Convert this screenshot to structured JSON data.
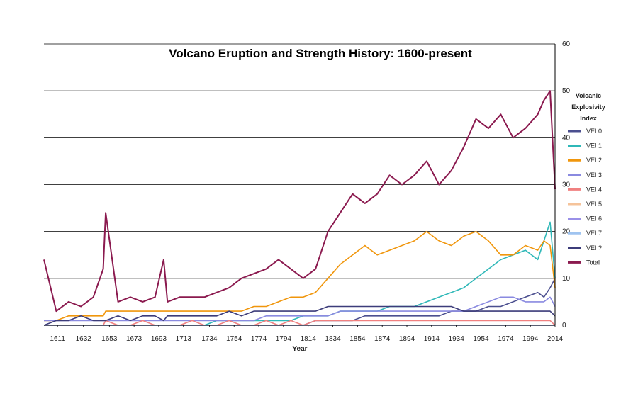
{
  "chart_data": {
    "type": "line",
    "title": "Volcano Eruption and Strength History: 1600-present",
    "xlabel": "Year",
    "ylabel": "",
    "ylim": [
      0,
      60
    ],
    "xlim": [
      1600,
      2014
    ],
    "y_ticks": [
      "0",
      "10",
      "20",
      "30",
      "40",
      "50",
      "60"
    ],
    "x_ticks": [
      "1611",
      "1632",
      "1653",
      "1673",
      "1693",
      "1713",
      "1734",
      "1754",
      "1774",
      "1794",
      "1814",
      "1834",
      "1854",
      "1874",
      "1894",
      "1914",
      "1934",
      "1954",
      "1974",
      "1994",
      "2014"
    ],
    "grid": true,
    "y_axis_position": "right",
    "legend": {
      "title_lines": [
        "Volcanic",
        "Explosivity",
        "Index"
      ],
      "placement": "right"
    },
    "x": [
      1600,
      1610,
      1620,
      1630,
      1640,
      1648,
      1650,
      1660,
      1670,
      1680,
      1690,
      1697,
      1700,
      1710,
      1720,
      1730,
      1740,
      1750,
      1760,
      1770,
      1780,
      1790,
      1800,
      1810,
      1820,
      1830,
      1840,
      1850,
      1860,
      1870,
      1880,
      1890,
      1900,
      1910,
      1920,
      1930,
      1940,
      1950,
      1960,
      1970,
      1980,
      1990,
      2000,
      2005,
      2010,
      2014
    ],
    "series": [
      {
        "name": "VEI 0",
        "color": "#4b4f8f",
        "values": [
          0,
          0,
          0,
          0,
          0,
          0,
          0,
          0,
          0,
          0,
          0,
          0,
          0,
          0,
          0,
          0,
          0,
          0,
          0,
          0,
          0,
          0,
          0,
          0,
          1,
          1,
          1,
          1,
          2,
          2,
          2,
          2,
          2,
          2,
          2,
          3,
          3,
          3,
          4,
          4,
          5,
          6,
          7,
          6,
          8,
          10
        ]
      },
      {
        "name": "VEI 1",
        "color": "#2fb8b8",
        "values": [
          0,
          0,
          0,
          0,
          0,
          0,
          0,
          0,
          0,
          0,
          0,
          0,
          0,
          0,
          0,
          0,
          1,
          1,
          1,
          1,
          1,
          1,
          1,
          2,
          2,
          2,
          3,
          3,
          3,
          3,
          4,
          4,
          4,
          5,
          6,
          7,
          8,
          10,
          12,
          14,
          15,
          16,
          14,
          18,
          22,
          10
        ]
      },
      {
        "name": "VEI 2",
        "color": "#f0960c",
        "values": [
          1,
          1,
          2,
          2,
          2,
          2,
          3,
          3,
          3,
          3,
          3,
          3,
          3,
          3,
          3,
          3,
          3,
          3,
          3,
          4,
          4,
          5,
          6,
          6,
          7,
          10,
          13,
          15,
          17,
          15,
          16,
          17,
          18,
          20,
          18,
          17,
          19,
          20,
          18,
          15,
          15,
          17,
          16,
          18,
          17,
          8
        ]
      },
      {
        "name": "VEI 3",
        "color": "#8a8ae0",
        "values": [
          1,
          1,
          1,
          1,
          1,
          1,
          1,
          1,
          1,
          1,
          1,
          1,
          1,
          1,
          1,
          1,
          1,
          1,
          1,
          1,
          2,
          2,
          2,
          2,
          2,
          2,
          3,
          3,
          3,
          3,
          3,
          3,
          3,
          3,
          3,
          3,
          3,
          4,
          5,
          6,
          6,
          5,
          5,
          5,
          6,
          4
        ]
      },
      {
        "name": "VEI 4",
        "color": "#f08080",
        "values": [
          0,
          0,
          0,
          0,
          0,
          0,
          1,
          0,
          0,
          1,
          0,
          0,
          0,
          0,
          1,
          0,
          0,
          1,
          0,
          0,
          1,
          0,
          1,
          0,
          1,
          1,
          1,
          1,
          1,
          1,
          1,
          1,
          1,
          1,
          1,
          1,
          1,
          1,
          1,
          1,
          1,
          1,
          1,
          1,
          1,
          0
        ]
      },
      {
        "name": "VEI 5",
        "color": "#f5c39a",
        "values": [
          0,
          0,
          0,
          0,
          0,
          0,
          0,
          0,
          0,
          0,
          0,
          0,
          0,
          0,
          0,
          0,
          0,
          0,
          0,
          0,
          0,
          0,
          0,
          0,
          0,
          0,
          0,
          0,
          0,
          0,
          0,
          0,
          0,
          0,
          0,
          0,
          0,
          0,
          0,
          0,
          0,
          0,
          0,
          0,
          0,
          0
        ]
      },
      {
        "name": "VEI 6",
        "color": "#9a90e8",
        "values": [
          0,
          0,
          0,
          0,
          0,
          0,
          0,
          0,
          0,
          0,
          0,
          0,
          0,
          0,
          0,
          0,
          0,
          0,
          0,
          0,
          0,
          0,
          0,
          0,
          0,
          0,
          0,
          0,
          0,
          0,
          0,
          0,
          0,
          0,
          0,
          0,
          0,
          0,
          0,
          0,
          0,
          0,
          0,
          0,
          0,
          0
        ]
      },
      {
        "name": "VEI 7",
        "color": "#9fc4f0",
        "values": [
          0,
          0,
          0,
          0,
          0,
          0,
          0,
          0,
          0,
          0,
          0,
          0,
          0,
          0,
          0,
          0,
          0,
          0,
          0,
          0,
          0,
          0,
          0,
          0,
          0,
          0,
          0,
          0,
          0,
          0,
          0,
          0,
          0,
          0,
          0,
          0,
          0,
          0,
          0,
          0,
          0,
          0,
          0,
          0,
          0,
          0
        ]
      },
      {
        "name": "VEI ?",
        "color": "#3c3c7a",
        "values": [
          0,
          1,
          1,
          2,
          1,
          1,
          1,
          2,
          1,
          2,
          2,
          1,
          2,
          2,
          2,
          2,
          2,
          3,
          2,
          3,
          3,
          3,
          3,
          3,
          3,
          4,
          4,
          4,
          4,
          4,
          4,
          4,
          4,
          4,
          4,
          4,
          3,
          3,
          3,
          3,
          3,
          3,
          3,
          3,
          3,
          2
        ]
      },
      {
        "name": "Total",
        "color": "#8b1a4f",
        "values": [
          14,
          3,
          5,
          4,
          6,
          12,
          24,
          5,
          6,
          5,
          6,
          14,
          5,
          6,
          6,
          6,
          7,
          8,
          10,
          11,
          12,
          14,
          12,
          10,
          12,
          20,
          24,
          28,
          26,
          28,
          32,
          30,
          32,
          35,
          30,
          33,
          38,
          44,
          42,
          45,
          40,
          42,
          45,
          48,
          50,
          29
        ]
      }
    ]
  }
}
